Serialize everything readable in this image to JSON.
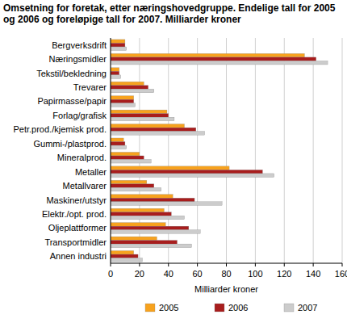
{
  "chart_data": {
    "type": "bar",
    "orientation": "horizontal",
    "title": "Omsetning for foretak, etter næringshovedgruppe. Endelige tall for 2005 og 2006 og foreløpige tall for 2007. Milliarder kroner",
    "x_label": "Milliarder kroner",
    "categories": [
      "Bergverksdrift",
      "Næringsmidler",
      "Tekstil/bekledning",
      "Trevarer",
      "Papirmasse/papir",
      "Forlag/grafisk",
      "Petr.prod./kjemisk prod.",
      "Gummi-/plastprod.",
      "Mineralprod.",
      "Metaller",
      "Metallvarer",
      "Maskiner/utstyr",
      "Elektr./opt. prod.",
      "Oljeplattformer",
      "Transportmidler",
      "Annen industri"
    ],
    "series": [
      {
        "name": "2005",
        "color": "#f7a21e",
        "values": [
          10,
          134,
          6,
          23,
          16,
          39,
          51,
          9,
          20,
          82,
          25,
          43,
          37,
          38,
          32,
          16
        ]
      },
      {
        "name": "2006",
        "color": "#a81d1d",
        "values": [
          10,
          142,
          6,
          26,
          16,
          40,
          59,
          10,
          23,
          105,
          30,
          58,
          42,
          54,
          46,
          19
        ]
      },
      {
        "name": "2007",
        "color": "#cccccc",
        "values": [
          11,
          150,
          7,
          30,
          17,
          44,
          65,
          11,
          28,
          113,
          35,
          77,
          51,
          62,
          56,
          22
        ]
      }
    ],
    "xlim": [
      0,
      160
    ],
    "xticks": [
      0,
      20,
      40,
      60,
      80,
      100,
      120,
      140,
      160
    ],
    "grid": true,
    "legend": "bottom"
  }
}
